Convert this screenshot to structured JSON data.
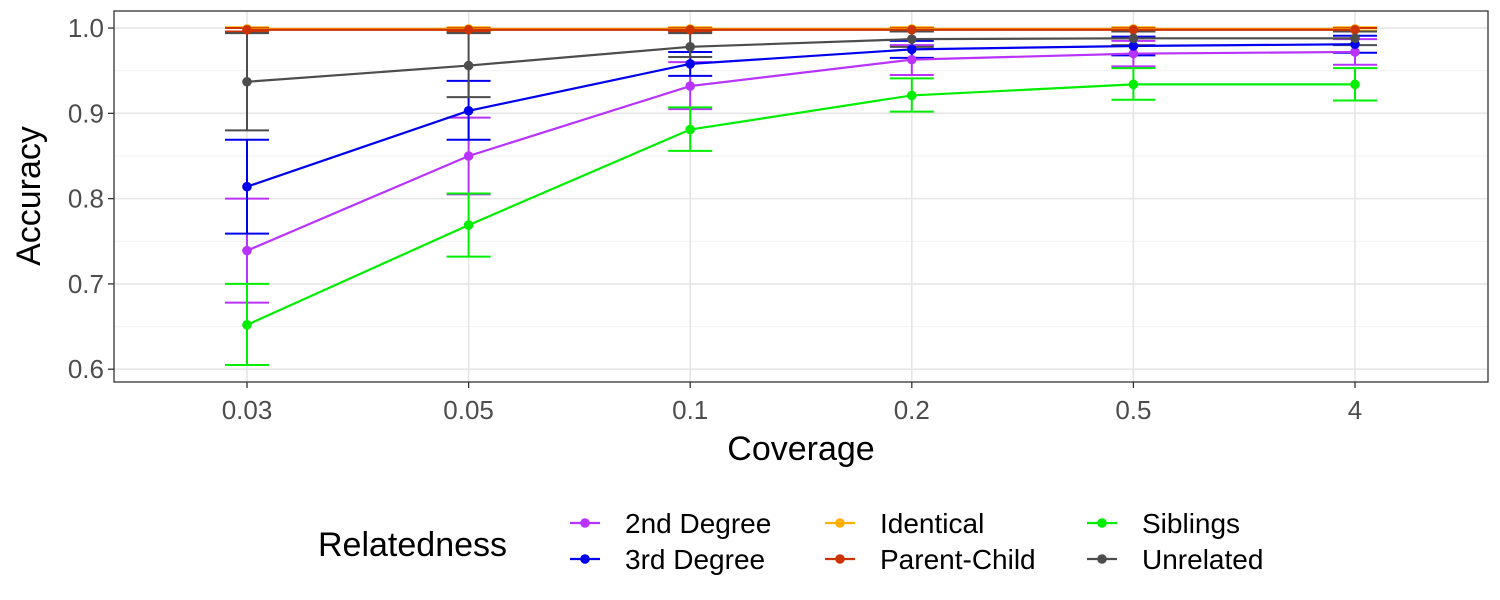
{
  "chart_data": {
    "type": "line",
    "title": "",
    "xlabel": "Coverage",
    "ylabel": "Accuracy",
    "categories": [
      "0.03",
      "0.05",
      "0.1",
      "0.2",
      "0.5",
      "4"
    ],
    "ylim": [
      0.585,
      1.02
    ],
    "yticks": [
      "0.6",
      "0.7",
      "0.8",
      "0.9",
      "1.0"
    ],
    "grid": true,
    "legend": {
      "title": "Relatedness",
      "position": "bottom"
    },
    "series": [
      {
        "name": "2nd Degree",
        "color": "#B833FF",
        "values": [
          0.739,
          0.85,
          0.932,
          0.963,
          0.97,
          0.972
        ],
        "lower": [
          0.678,
          0.805,
          0.905,
          0.945,
          0.955,
          0.957
        ],
        "upper": [
          0.8,
          0.895,
          0.96,
          0.98,
          0.985,
          0.987
        ]
      },
      {
        "name": "3rd Degree",
        "color": "#0000EE",
        "values": [
          0.814,
          0.903,
          0.958,
          0.975,
          0.979,
          0.981
        ],
        "lower": [
          0.759,
          0.869,
          0.944,
          0.965,
          0.968,
          0.971
        ],
        "upper": [
          0.869,
          0.938,
          0.972,
          0.985,
          0.99,
          0.991
        ]
      },
      {
        "name": "Identical",
        "color": "#FFB000",
        "values": [
          0.999,
          0.999,
          0.999,
          0.999,
          0.999,
          0.999
        ],
        "lower": [
          0.996,
          0.997,
          0.997,
          0.997,
          0.997,
          0.997
        ],
        "upper": [
          1.001,
          1.001,
          1.001,
          1.001,
          1.001,
          1.001
        ]
      },
      {
        "name": "Parent-Child",
        "color": "#CC3300",
        "values": [
          0.998,
          0.998,
          0.998,
          0.998,
          0.998,
          0.998
        ],
        "lower": [
          0.996,
          0.996,
          0.996,
          0.996,
          0.996,
          0.996
        ],
        "upper": [
          1.0,
          1.0,
          1.0,
          1.0,
          1.0,
          1.0
        ]
      },
      {
        "name": "Siblings",
        "color": "#00EE00",
        "values": [
          0.652,
          0.769,
          0.881,
          0.921,
          0.934,
          0.934
        ],
        "lower": [
          0.605,
          0.732,
          0.856,
          0.902,
          0.916,
          0.915
        ],
        "upper": [
          0.7,
          0.806,
          0.907,
          0.941,
          0.953,
          0.953
        ]
      },
      {
        "name": "Unrelated",
        "color": "#4D4D4D",
        "values": [
          0.937,
          0.956,
          0.978,
          0.987,
          0.988,
          0.988
        ],
        "lower": [
          0.88,
          0.919,
          0.966,
          0.978,
          0.98,
          0.98
        ],
        "upper": [
          0.994,
          0.994,
          0.994,
          0.996,
          0.996,
          0.996
        ]
      }
    ]
  }
}
